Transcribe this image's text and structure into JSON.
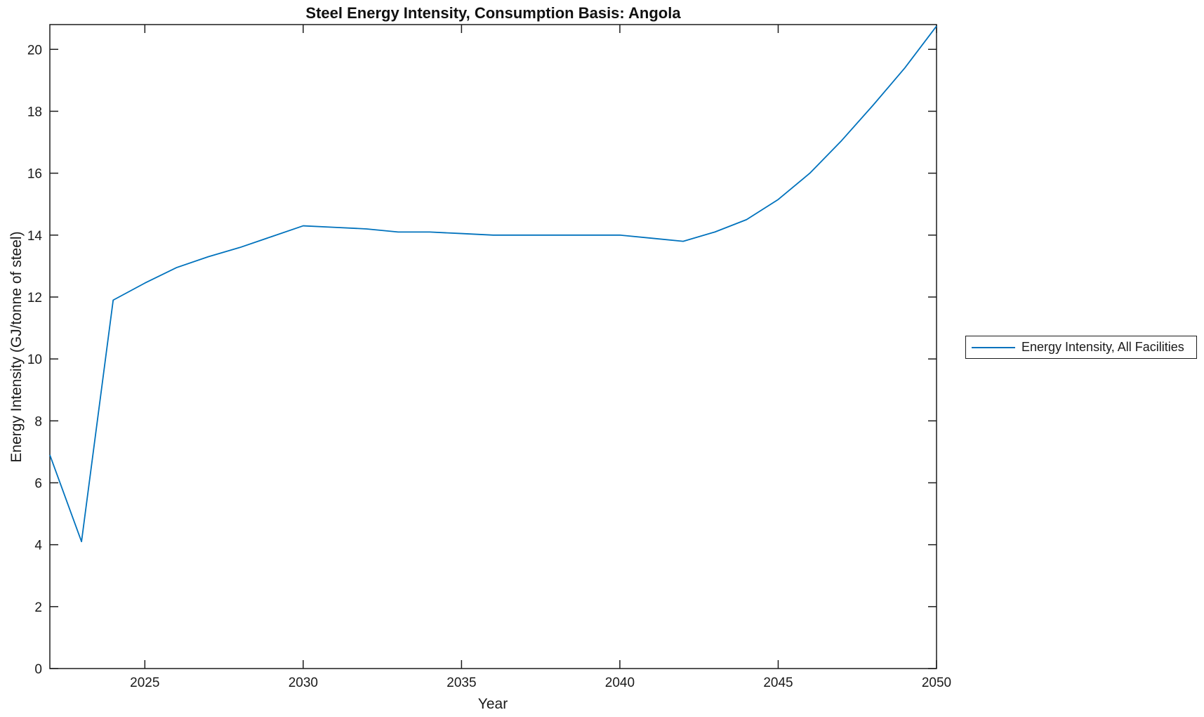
{
  "figure": {
    "background": "#ffffff",
    "axis_color": "#1c1c1c",
    "accent_color": "#0072BD"
  },
  "chart_data": {
    "type": "line",
    "title": "Steel Energy Intensity, Consumption Basis: Angola",
    "xlabel": "Year",
    "ylabel": "Energy Intensity (GJ/tonne of steel)",
    "x": [
      2022,
      2023,
      2024,
      2025,
      2026,
      2027,
      2028,
      2029,
      2030,
      2031,
      2032,
      2033,
      2034,
      2035,
      2036,
      2037,
      2038,
      2039,
      2040,
      2041,
      2042,
      2043,
      2044,
      2045,
      2046,
      2047,
      2048,
      2049,
      2050
    ],
    "series": [
      {
        "name": "Energy Intensity, All Facilities",
        "color": "#0072BD",
        "values": [
          6.9,
          4.1,
          11.9,
          12.45,
          12.95,
          13.3,
          13.6,
          13.95,
          14.3,
          14.25,
          14.2,
          14.1,
          14.1,
          14.05,
          14.0,
          14.0,
          14.0,
          14.0,
          14.0,
          13.9,
          13.8,
          14.1,
          14.5,
          15.15,
          16.0,
          17.05,
          18.2,
          19.4,
          20.75
        ]
      }
    ],
    "xlim": [
      2022,
      2050
    ],
    "ylim": [
      0,
      20.8
    ],
    "xticks": [
      2025,
      2030,
      2035,
      2040,
      2045,
      2050
    ],
    "yticks": [
      0,
      2,
      4,
      6,
      8,
      10,
      12,
      14,
      16,
      18,
      20
    ],
    "grid": false,
    "legend_position": "right-outside",
    "legend": [
      "Energy Intensity, All Facilities"
    ]
  }
}
